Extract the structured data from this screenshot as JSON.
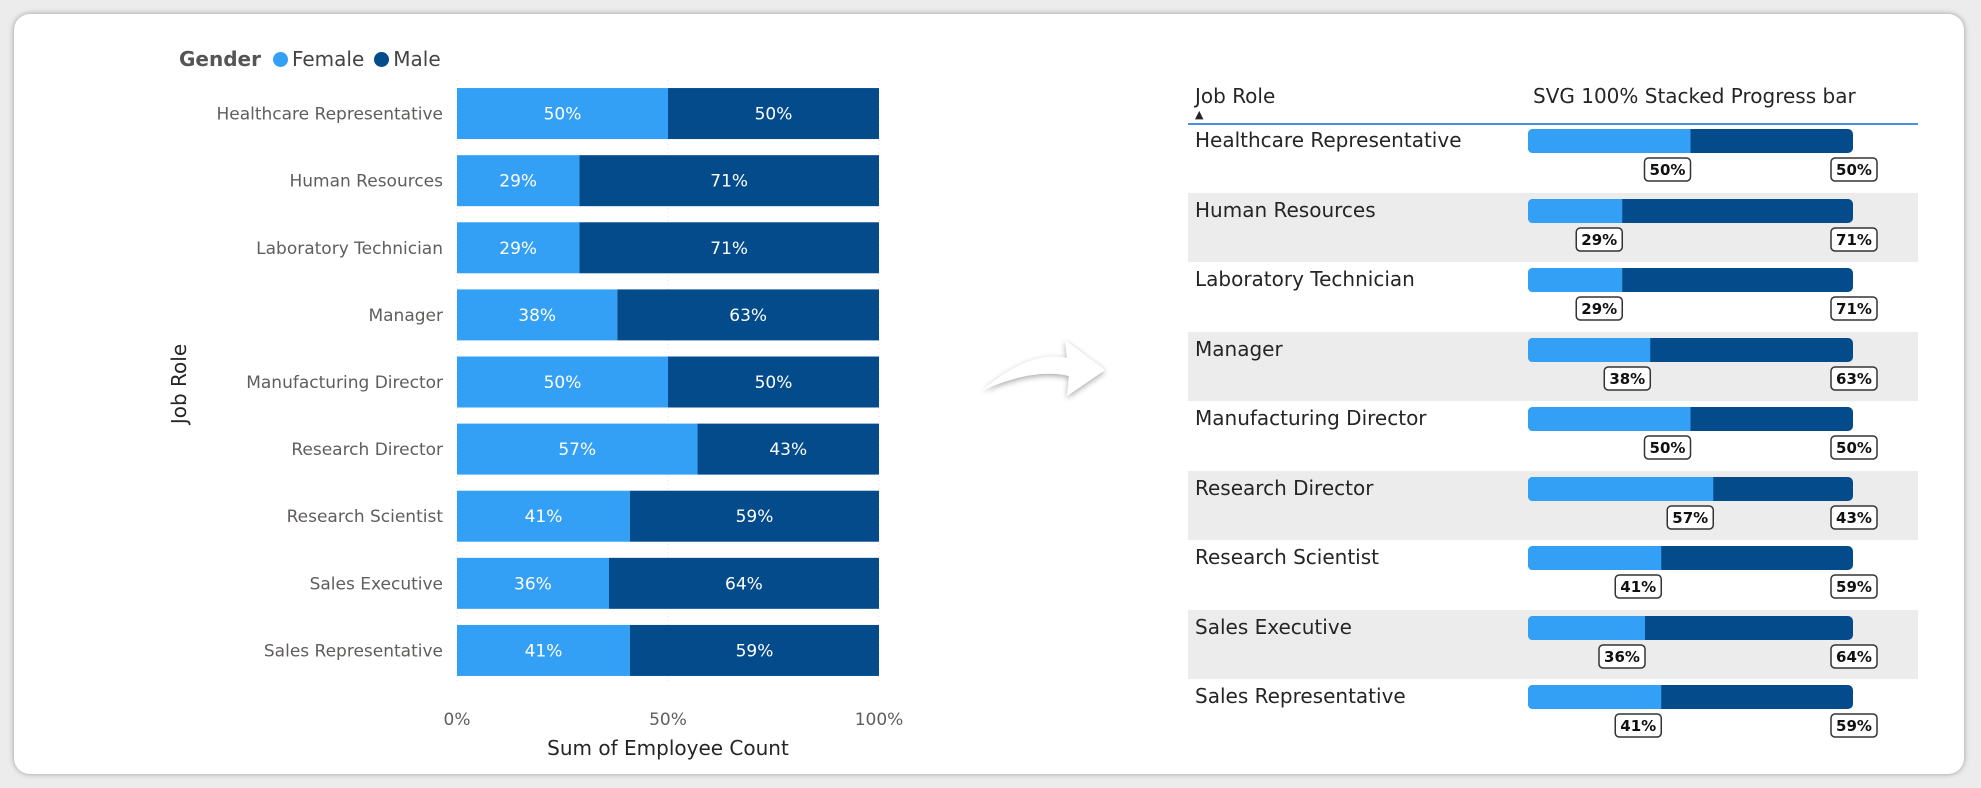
{
  "colors": {
    "female": "#34a0f5",
    "male": "#044b8c"
  },
  "legend": {
    "title": "Gender",
    "female_label": "Female",
    "male_label": "Male"
  },
  "chart_data": {
    "type": "bar",
    "orientation": "horizontal",
    "stacking": "100%",
    "categories": [
      "Healthcare Representative",
      "Human Resources",
      "Laboratory Technician",
      "Manager",
      "Manufacturing Director",
      "Research Director",
      "Research Scientist",
      "Sales Executive",
      "Sales Representative"
    ],
    "series": [
      {
        "name": "Female",
        "values": [
          50,
          29,
          29,
          38,
          50,
          57,
          41,
          36,
          41
        ]
      },
      {
        "name": "Male",
        "values": [
          50,
          71,
          71,
          63,
          50,
          43,
          59,
          64,
          59
        ]
      }
    ],
    "xlabel": "Sum of Employee Count",
    "ylabel": "Job Role",
    "xticks": [
      "0%",
      "50%",
      "100%"
    ],
    "xlim": [
      0,
      100
    ],
    "legend_position": "top-left",
    "grid": true
  },
  "table": {
    "header_job_role": "Job Role",
    "header_progress": "SVG 100% Stacked Progress bar",
    "sort_icon": "sort-ascending-icon",
    "rows": [
      {
        "role": "Healthcare Representative",
        "female": 50,
        "male": 50,
        "female_label": "50%",
        "male_label": "50%"
      },
      {
        "role": "Human Resources",
        "female": 29,
        "male": 71,
        "female_label": "29%",
        "male_label": "71%"
      },
      {
        "role": "Laboratory Technician",
        "female": 29,
        "male": 71,
        "female_label": "29%",
        "male_label": "71%"
      },
      {
        "role": "Manager",
        "female": 38,
        "male": 63,
        "female_label": "38%",
        "male_label": "63%"
      },
      {
        "role": "Manufacturing Director",
        "female": 50,
        "male": 50,
        "female_label": "50%",
        "male_label": "50%"
      },
      {
        "role": "Research Director",
        "female": 57,
        "male": 43,
        "female_label": "57%",
        "male_label": "43%"
      },
      {
        "role": "Research Scientist",
        "female": 41,
        "male": 59,
        "female_label": "41%",
        "male_label": "59%"
      },
      {
        "role": "Sales Executive",
        "female": 36,
        "male": 64,
        "female_label": "36%",
        "male_label": "64%"
      },
      {
        "role": "Sales Representative",
        "female": 41,
        "male": 59,
        "female_label": "41%",
        "male_label": "59%"
      }
    ]
  },
  "arrow_icon": "curved-arrow-right-icon"
}
